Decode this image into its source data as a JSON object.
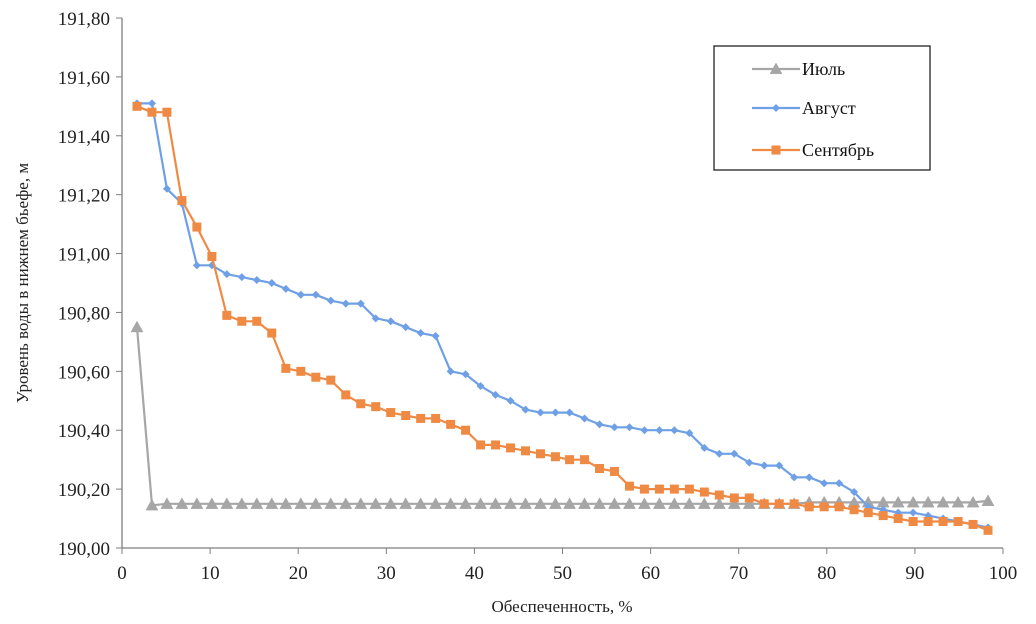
{
  "chart_data": {
    "type": "line",
    "xlabel": "Обеспеченность, %",
    "ylabel": "Уровень воды в нижнем бьефе, м",
    "xlim": [
      0,
      100
    ],
    "ylim": [
      190.0,
      191.8
    ],
    "x_ticks": [
      0,
      10,
      20,
      30,
      40,
      50,
      60,
      70,
      80,
      90,
      100
    ],
    "y_ticks": [
      190.0,
      190.2,
      190.4,
      190.6,
      190.8,
      191.0,
      191.2,
      191.4,
      191.6,
      191.8
    ],
    "x_tick_labels": [
      "0",
      "10",
      "20",
      "30",
      "40",
      "50",
      "60",
      "70",
      "80",
      "90",
      "100"
    ],
    "y_tick_labels": [
      "190,00",
      "190,20",
      "190,40",
      "190,60",
      "190,80",
      "191,00",
      "191,20",
      "191,40",
      "191,60",
      "191,80"
    ],
    "grid": false,
    "legend_position": "top-right",
    "series": [
      {
        "name": "Июль",
        "color": "#a6a6a6",
        "marker": "triangle",
        "x": [
          1.7,
          3.4,
          5.1,
          6.8,
          8.5,
          10.2,
          11.9,
          13.6,
          15.3,
          17.0,
          18.6,
          20.3,
          22.0,
          23.7,
          25.4,
          27.1,
          28.8,
          30.5,
          32.2,
          33.9,
          35.6,
          37.3,
          39.0,
          40.7,
          42.4,
          44.1,
          45.8,
          47.5,
          49.2,
          50.8,
          52.5,
          54.2,
          55.9,
          57.6,
          59.3,
          61.0,
          62.7,
          64.4,
          66.1,
          67.8,
          69.5,
          71.2,
          72.9,
          74.6,
          76.3,
          78.0,
          79.7,
          81.4,
          83.1,
          84.7,
          86.4,
          88.1,
          89.8,
          91.5,
          93.2,
          94.9,
          96.6,
          98.3
        ],
        "y": [
          190.75,
          190.145,
          190.15,
          190.15,
          190.15,
          190.15,
          190.15,
          190.15,
          190.15,
          190.15,
          190.15,
          190.15,
          190.15,
          190.15,
          190.15,
          190.15,
          190.15,
          190.15,
          190.15,
          190.15,
          190.15,
          190.15,
          190.15,
          190.15,
          190.15,
          190.15,
          190.15,
          190.15,
          190.15,
          190.15,
          190.15,
          190.15,
          190.15,
          190.15,
          190.15,
          190.15,
          190.15,
          190.15,
          190.15,
          190.15,
          190.15,
          190.15,
          190.15,
          190.15,
          190.15,
          190.155,
          190.155,
          190.155,
          190.155,
          190.155,
          190.155,
          190.155,
          190.155,
          190.155,
          190.155,
          190.155,
          190.155,
          190.16
        ]
      },
      {
        "name": "Август",
        "color": "#6fa0e6",
        "marker": "diamond",
        "x": [
          1.7,
          3.4,
          5.1,
          6.8,
          8.5,
          10.2,
          11.9,
          13.6,
          15.3,
          17.0,
          18.6,
          20.3,
          22.0,
          23.7,
          25.4,
          27.1,
          28.8,
          30.5,
          32.2,
          33.9,
          35.6,
          37.3,
          39.0,
          40.7,
          42.4,
          44.1,
          45.8,
          47.5,
          49.2,
          50.8,
          52.5,
          54.2,
          55.9,
          57.6,
          59.3,
          61.0,
          62.7,
          64.4,
          66.1,
          67.8,
          69.5,
          71.2,
          72.9,
          74.6,
          76.3,
          78.0,
          79.7,
          81.4,
          83.1,
          84.7,
          86.4,
          88.1,
          89.8,
          91.5,
          93.2,
          94.9,
          96.6,
          98.3
        ],
        "y": [
          191.51,
          191.51,
          191.22,
          191.17,
          190.96,
          190.96,
          190.93,
          190.92,
          190.91,
          190.9,
          190.88,
          190.86,
          190.86,
          190.84,
          190.83,
          190.83,
          190.78,
          190.77,
          190.75,
          190.73,
          190.72,
          190.6,
          190.59,
          190.55,
          190.52,
          190.5,
          190.47,
          190.46,
          190.46,
          190.46,
          190.44,
          190.42,
          190.41,
          190.41,
          190.4,
          190.4,
          190.4,
          190.39,
          190.34,
          190.32,
          190.32,
          190.29,
          190.28,
          190.28,
          190.24,
          190.24,
          190.22,
          190.22,
          190.19,
          190.14,
          190.13,
          190.12,
          190.12,
          190.11,
          190.1,
          190.09,
          190.08,
          190.07
        ]
      },
      {
        "name": "Сентябрь",
        "color": "#ef8a45",
        "marker": "square",
        "x": [
          1.7,
          3.4,
          5.1,
          6.8,
          8.5,
          10.2,
          11.9,
          13.6,
          15.3,
          17.0,
          18.6,
          20.3,
          22.0,
          23.7,
          25.4,
          27.1,
          28.8,
          30.5,
          32.2,
          33.9,
          35.6,
          37.3,
          39.0,
          40.7,
          42.4,
          44.1,
          45.8,
          47.5,
          49.2,
          50.8,
          52.5,
          54.2,
          55.9,
          57.6,
          59.3,
          61.0,
          62.7,
          64.4,
          66.1,
          67.8,
          69.5,
          71.2,
          72.9,
          74.6,
          76.3,
          78.0,
          79.7,
          81.4,
          83.1,
          84.7,
          86.4,
          88.1,
          89.8,
          91.5,
          93.2,
          94.9,
          96.6,
          98.3
        ],
        "y": [
          191.5,
          191.48,
          191.48,
          191.18,
          191.09,
          190.99,
          190.79,
          190.77,
          190.77,
          190.73,
          190.61,
          190.6,
          190.58,
          190.57,
          190.52,
          190.49,
          190.48,
          190.46,
          190.45,
          190.44,
          190.44,
          190.42,
          190.4,
          190.35,
          190.35,
          190.34,
          190.33,
          190.32,
          190.31,
          190.3,
          190.3,
          190.27,
          190.26,
          190.21,
          190.2,
          190.2,
          190.2,
          190.2,
          190.19,
          190.18,
          190.17,
          190.17,
          190.15,
          190.15,
          190.15,
          190.14,
          190.14,
          190.14,
          190.13,
          190.12,
          190.11,
          190.1,
          190.09,
          190.09,
          190.09,
          190.09,
          190.08,
          190.06
        ]
      }
    ]
  }
}
